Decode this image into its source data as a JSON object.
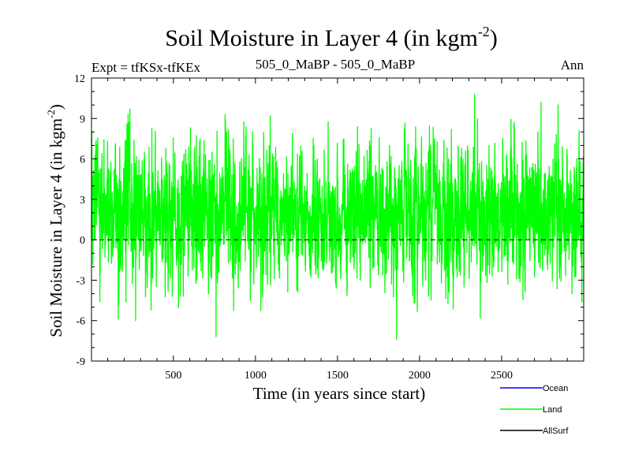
{
  "chart_data": {
    "type": "line",
    "title_main": "Soil Moisture in Layer 4 (in kgm",
    "title_sup": "-2",
    "title_end": ")",
    "subtitle_left": "Expt = tfKSx-tfKEx",
    "subtitle_center": "505_0_MaBP - 505_0_MaBP",
    "subtitle_right": "Ann",
    "xlabel": "Time (in years since start)",
    "ylabel_main": "Soil Moisture in Layer 4 (in kgm",
    "ylabel_sup": "-2",
    "ylabel_end": ")",
    "xlim": [
      1,
      3000
    ],
    "ylim": [
      -9,
      12
    ],
    "xticks": [
      500,
      1000,
      1500,
      2000,
      2500
    ],
    "xtick_labels": [
      "500",
      "1000",
      "1500",
      "2000",
      "2500"
    ],
    "yticks": [
      -9,
      -6,
      -3,
      0,
      3,
      6,
      9,
      12
    ],
    "ytick_labels": [
      "-9",
      "-6",
      "-3",
      "0",
      "3",
      "6",
      "9",
      "12"
    ],
    "zero_line": 0,
    "series": [
      {
        "name": "Ocean",
        "color": "#0000ff",
        "values": []
      },
      {
        "name": "Land",
        "color": "#00ff00",
        "x_start": 1,
        "x_end": 3000,
        "mean": 2.0,
        "std": 2.5,
        "min": -7.4,
        "max": 10.8,
        "extremes": [
          {
            "x": 760,
            "y": -7.2
          },
          {
            "x": 1860,
            "y": -7.4
          },
          {
            "x": 2335,
            "y": 10.8
          },
          {
            "x": 2740,
            "y": 10.2
          },
          {
            "x": 270,
            "y": -6.0
          },
          {
            "x": 2370,
            "y": -5.8
          }
        ]
      },
      {
        "name": "AllSurf",
        "color": "#000000",
        "values": []
      }
    ],
    "legend_position": "bottom-right"
  }
}
